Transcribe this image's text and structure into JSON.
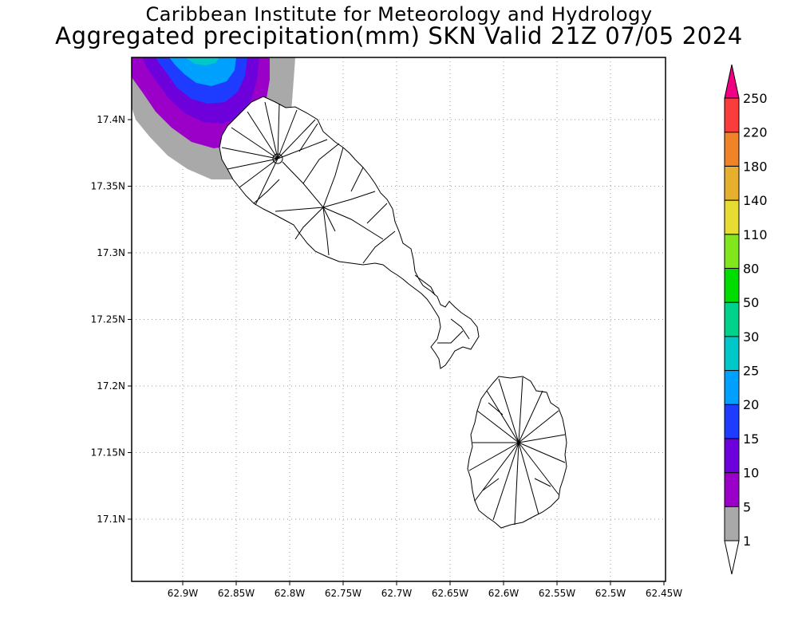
{
  "title": "Caribbean Institute for Meteorology and Hydrology",
  "subtitle": "Aggregated precipitation(mm) SKN Valid 21Z 07/05 2024",
  "map": {
    "lon_ticks": [
      "62.9W",
      "62.85W",
      "62.8W",
      "62.75W",
      "62.7W",
      "62.65W",
      "62.6W",
      "62.55W",
      "62.5W",
      "62.45W"
    ],
    "lat_ticks": [
      "17.4N",
      "17.35N",
      "17.3N",
      "17.25N",
      "17.2N",
      "17.15N",
      "17.1N"
    ],
    "lon_range": [
      62.95,
      62.45
    ],
    "lat_range": [
      17.05,
      17.445
    ],
    "gridlines": true,
    "precipitation_area": "northwest corner, off St. Kitts coast",
    "islands": [
      "St. Kitts",
      "Nevis"
    ]
  },
  "colorbar": {
    "labels": [
      "1",
      "5",
      "10",
      "15",
      "20",
      "25",
      "30",
      "50",
      "80",
      "110",
      "140",
      "180",
      "220",
      "250"
    ],
    "colors": [
      "#ffffff",
      "#a9a9a9",
      "#9b00c8",
      "#6e00dc",
      "#1e3cff",
      "#00a0ff",
      "#00c8c8",
      "#00d28c",
      "#00dc00",
      "#82e61e",
      "#e6dc32",
      "#e6af2d",
      "#f08228",
      "#fa3c3c",
      "#f00082"
    ],
    "position": "right"
  }
}
